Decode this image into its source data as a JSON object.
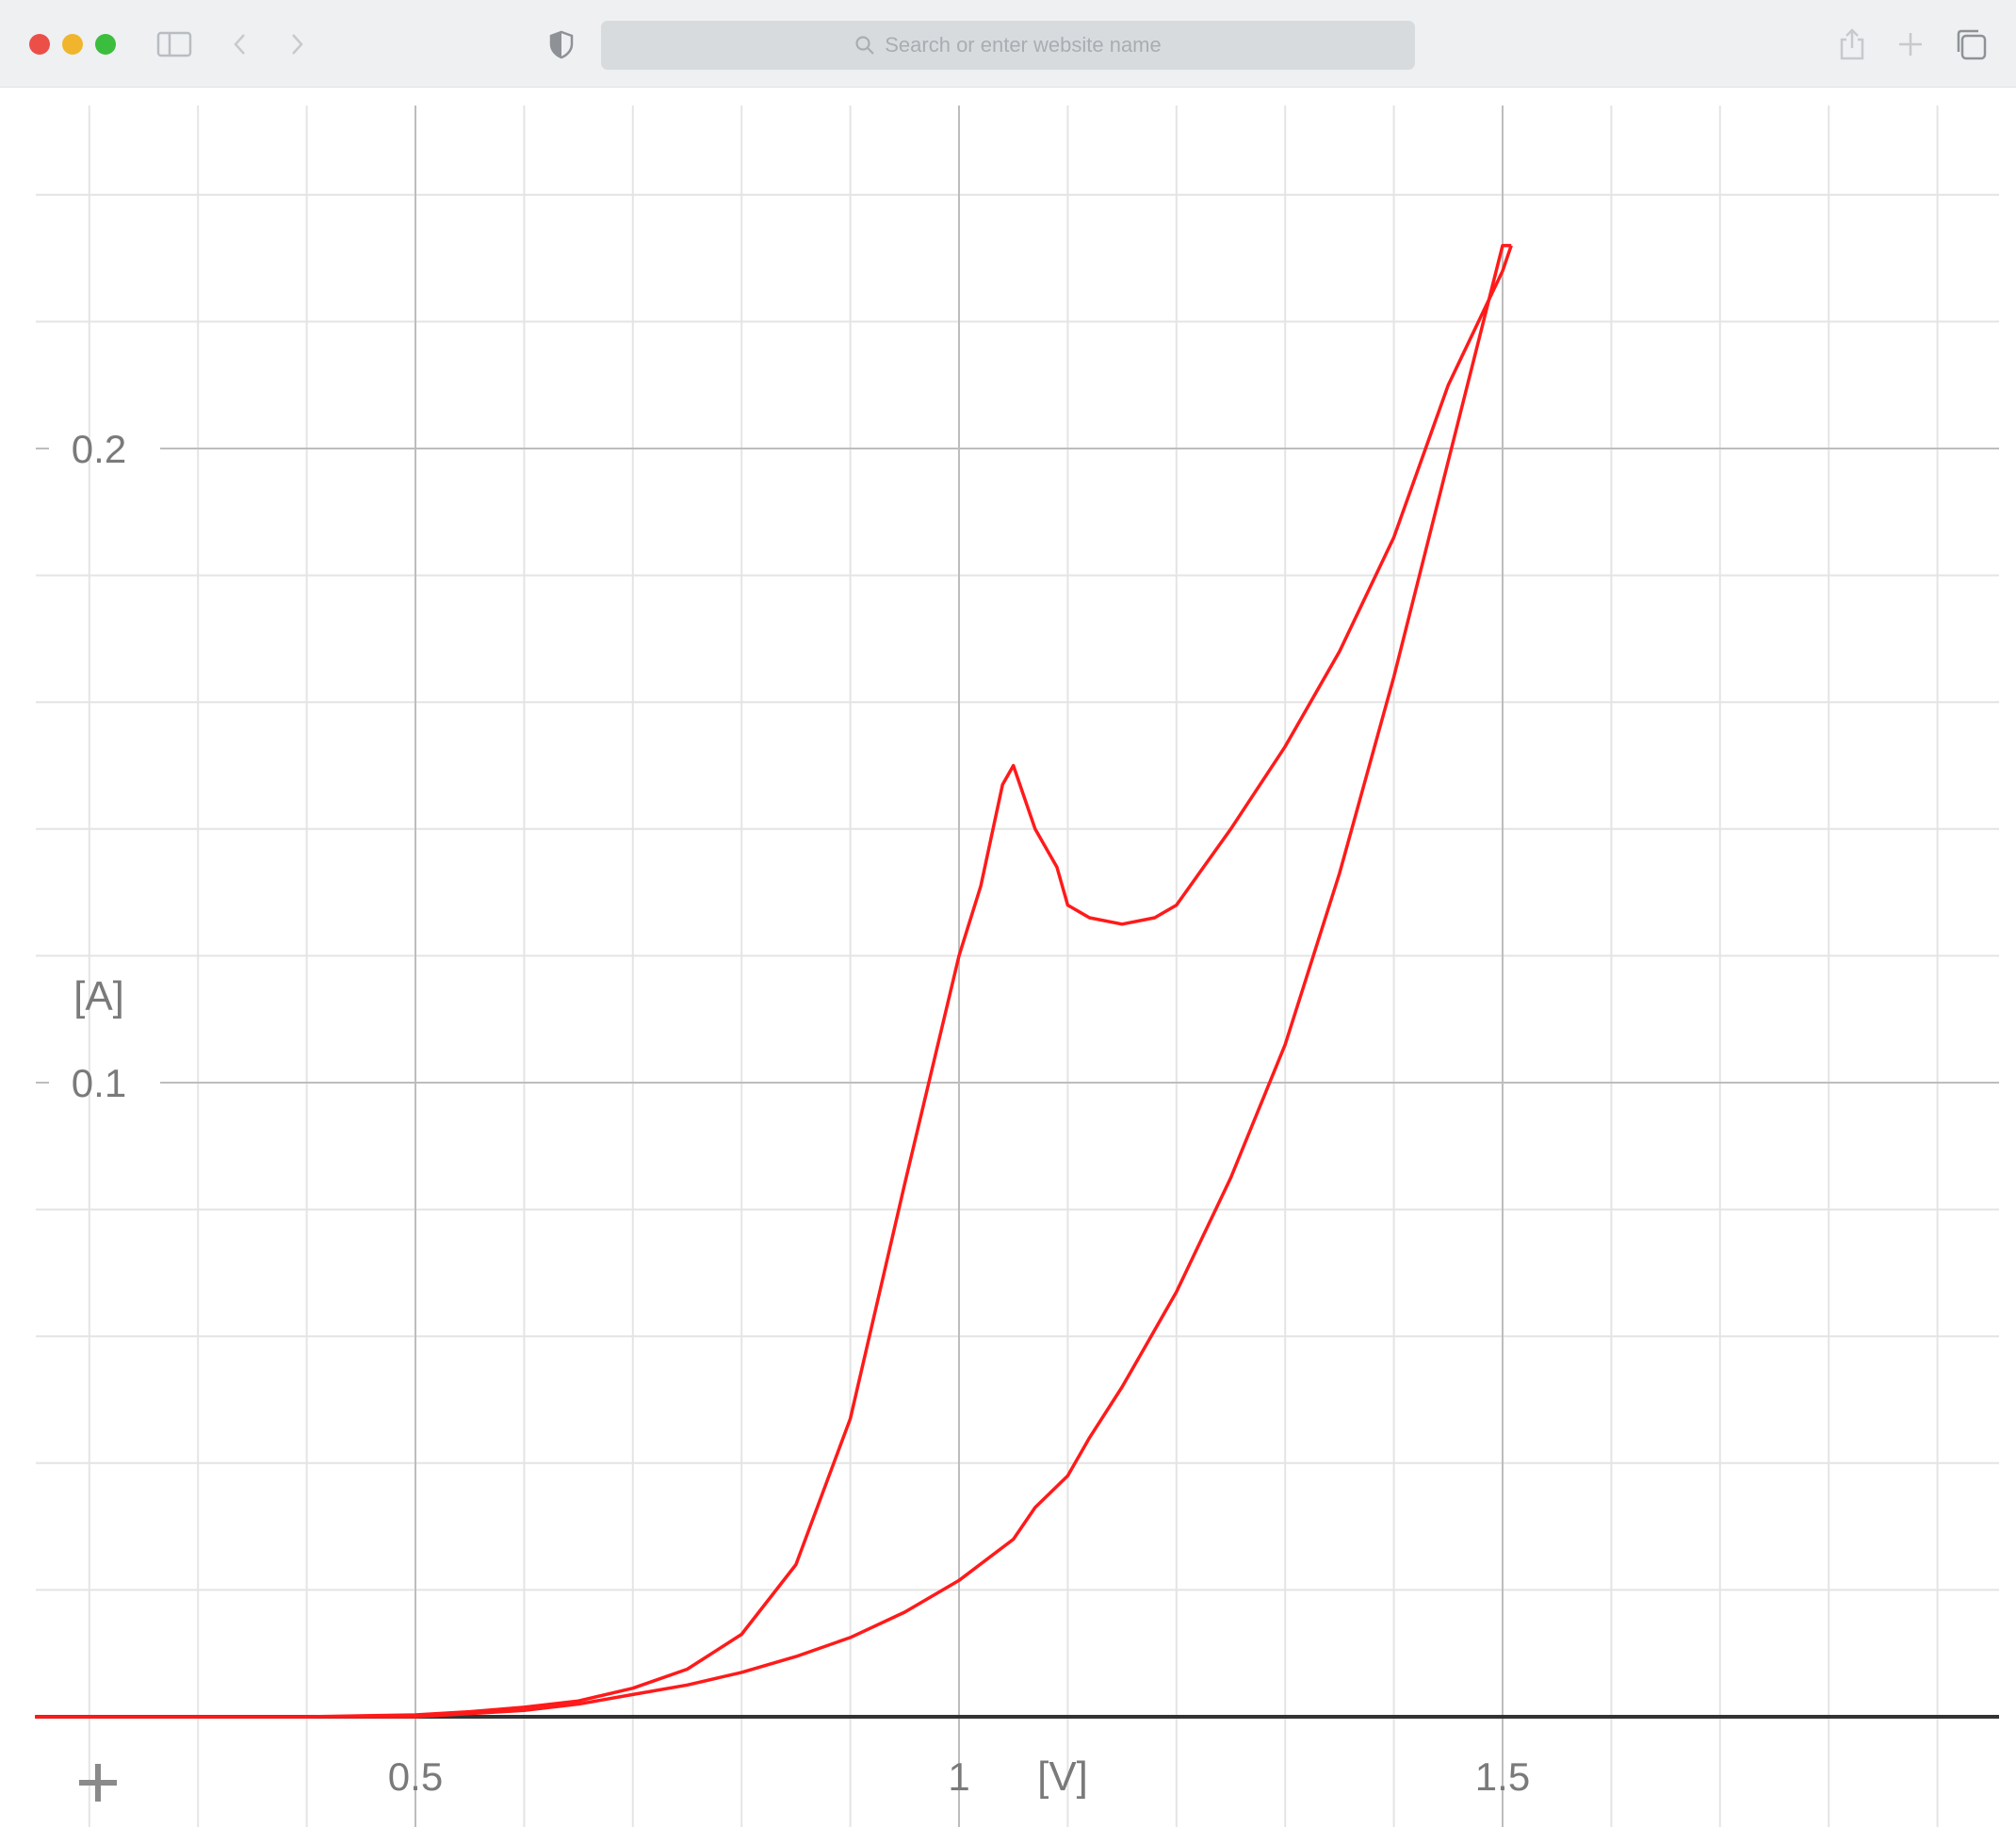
{
  "browser": {
    "url_placeholder": "Search or enter website name",
    "icons": [
      "close-dot",
      "minimize-dot",
      "zoom-dot",
      "sidebar-icon",
      "back-icon",
      "forward-icon",
      "shield-icon",
      "search-icon",
      "share-icon",
      "new-tab-icon",
      "tabs-overview-icon"
    ]
  },
  "chart_data": {
    "type": "line",
    "xlabel": "[V]",
    "ylabel": "[A]",
    "xlim": [
      0.15,
      1.95
    ],
    "ylim": [
      0,
      0.26
    ],
    "x_ticks": [
      0.5,
      1,
      1.5
    ],
    "x_tick_labels": [
      "0.5",
      "1",
      "1.5"
    ],
    "y_ticks": [
      0.1,
      0.2
    ],
    "y_tick_labels": [
      "0.1",
      "0.2"
    ],
    "x_minor_step": 0.1,
    "y_minor_step": 0.02,
    "grid": true,
    "colors": {
      "series": "#ff1a1a",
      "grid_major": "#bdbdbd",
      "grid_minor": "#e4e4e4",
      "axis": "#333333"
    },
    "series": [
      {
        "x": [
          0.15,
          0.25,
          0.3,
          0.4,
          0.5,
          0.55,
          0.6,
          0.65,
          0.7,
          0.75,
          0.8,
          0.85,
          0.9,
          0.95,
          1.0,
          1.05,
          1.07,
          1.1,
          1.12,
          1.15,
          1.17,
          1.2,
          1.25,
          1.3,
          1.35,
          1.4,
          1.45,
          1.5,
          1.508
        ],
        "y": [
          0.0,
          0.0,
          0.0,
          0.0,
          0.0,
          0.0005,
          0.001,
          0.002,
          0.0035,
          0.005,
          0.007,
          0.0095,
          0.0125,
          0.0165,
          0.0215,
          0.028,
          0.033,
          0.038,
          0.044,
          0.052,
          0.058,
          0.067,
          0.085,
          0.106,
          0.133,
          0.164,
          0.198,
          0.232,
          0.232
        ]
      },
      {
        "x": [
          1.508,
          1.5,
          1.45,
          1.4,
          1.35,
          1.3,
          1.25,
          1.2,
          1.18,
          1.15,
          1.12,
          1.1,
          1.09,
          1.07,
          1.05,
          1.04,
          1.02,
          1.0,
          0.95,
          0.9,
          0.85,
          0.8,
          0.75,
          0.7,
          0.65,
          0.6,
          0.55,
          0.5,
          0.4,
          0.3,
          0.25,
          0.15
        ],
        "y": [
          0.232,
          0.228,
          0.21,
          0.186,
          0.168,
          0.153,
          0.14,
          0.128,
          0.126,
          0.125,
          0.126,
          0.128,
          0.134,
          0.14,
          0.15,
          0.147,
          0.131,
          0.12,
          0.084,
          0.047,
          0.024,
          0.013,
          0.0075,
          0.0045,
          0.0025,
          0.0015,
          0.0008,
          0.0003,
          0.0,
          0.0,
          0.0,
          0.0
        ]
      }
    ]
  }
}
